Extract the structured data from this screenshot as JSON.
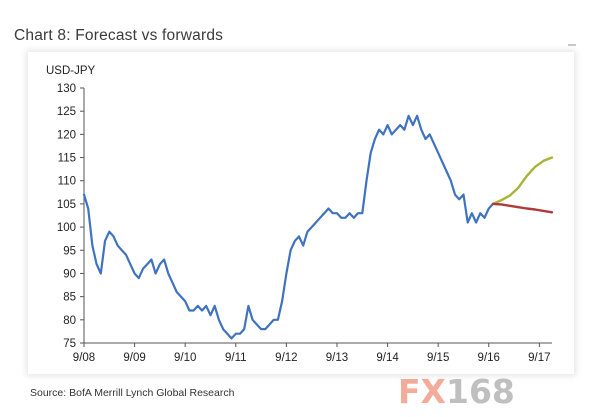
{
  "header": {
    "title": "Chart 8: Forecast vs forwards"
  },
  "footer": {
    "source": "Source: BofA Merrill Lynch Global Research"
  },
  "watermark": {
    "prefix": "FX",
    "suffix": "168"
  },
  "chart_data": {
    "type": "line",
    "title": "Chart 8: Forecast vs forwards",
    "ylabel": "USD-JPY",
    "xlabel": "",
    "ylim": [
      75,
      130
    ],
    "yticks": [
      75,
      80,
      85,
      90,
      95,
      100,
      105,
      110,
      115,
      120,
      125,
      130
    ],
    "xlim": [
      2008.667,
      2017.917
    ],
    "xticks": [
      {
        "label": "9/08",
        "t": 2008.667
      },
      {
        "label": "9/09",
        "t": 2009.667
      },
      {
        "label": "9/10",
        "t": 2010.667
      },
      {
        "label": "9/11",
        "t": 2011.667
      },
      {
        "label": "9/12",
        "t": 2012.667
      },
      {
        "label": "9/13",
        "t": 2013.667
      },
      {
        "label": "9/14",
        "t": 2014.667
      },
      {
        "label": "9/15",
        "t": 2015.667
      },
      {
        "label": "9/16",
        "t": 2016.667
      },
      {
        "label": "9/17",
        "t": 2017.667
      }
    ],
    "grid": false,
    "legend": "none",
    "series": [
      {
        "color": "#3f72c0",
        "x": [
          2008.667,
          2008.75,
          2008.833,
          2008.917,
          2009.0,
          2009.083,
          2009.167,
          2009.25,
          2009.333,
          2009.417,
          2009.5,
          2009.583,
          2009.667,
          2009.75,
          2009.833,
          2009.917,
          2010.0,
          2010.083,
          2010.167,
          2010.25,
          2010.333,
          2010.417,
          2010.5,
          2010.583,
          2010.667,
          2010.75,
          2010.833,
          2010.917,
          2011.0,
          2011.083,
          2011.167,
          2011.25,
          2011.333,
          2011.417,
          2011.5,
          2011.583,
          2011.667,
          2011.75,
          2011.833,
          2011.917,
          2012.0,
          2012.083,
          2012.167,
          2012.25,
          2012.333,
          2012.417,
          2012.5,
          2012.583,
          2012.667,
          2012.75,
          2012.833,
          2012.917,
          2013.0,
          2013.083,
          2013.167,
          2013.25,
          2013.333,
          2013.417,
          2013.5,
          2013.583,
          2013.667,
          2013.75,
          2013.833,
          2013.917,
          2014.0,
          2014.083,
          2014.167,
          2014.25,
          2014.333,
          2014.417,
          2014.5,
          2014.583,
          2014.667,
          2014.75,
          2014.833,
          2014.917,
          2015.0,
          2015.083,
          2015.167,
          2015.25,
          2015.333,
          2015.417,
          2015.5,
          2015.583,
          2015.667,
          2015.75,
          2015.833,
          2015.917,
          2016.0,
          2016.083,
          2016.167,
          2016.25,
          2016.333,
          2016.417,
          2016.5,
          2016.583,
          2016.667,
          2016.75
        ],
        "values": [
          107,
          104,
          96,
          92,
          90,
          97,
          99,
          98,
          96,
          95,
          94,
          92,
          90,
          89,
          91,
          92,
          93,
          90,
          92,
          93,
          90,
          88,
          86,
          85,
          84,
          82,
          82,
          83,
          82,
          83,
          81,
          83,
          80,
          78,
          77,
          76,
          77,
          77,
          78,
          83,
          80,
          79,
          78,
          78,
          79,
          80,
          80,
          84,
          90,
          95,
          97,
          98,
          96,
          99,
          100,
          101,
          102,
          103,
          104,
          103,
          103,
          102,
          102,
          103,
          102,
          103,
          103,
          110,
          116,
          119,
          121,
          120,
          122,
          120,
          121,
          122,
          121,
          124,
          122,
          124,
          121,
          119,
          120,
          118,
          116,
          114,
          112,
          110,
          107,
          106,
          107,
          101,
          103,
          101,
          103,
          102,
          104,
          105
        ]
      },
      {
        "color": "#a8b436",
        "x": [
          2016.75,
          2016.917,
          2017.083,
          2017.25,
          2017.417,
          2017.583,
          2017.75,
          2017.917
        ],
        "values": [
          105,
          105.8,
          106.8,
          108.5,
          111,
          113,
          114.3,
          115
        ]
      },
      {
        "color": "#b03a38",
        "x": [
          2016.75,
          2016.917,
          2017.083,
          2017.25,
          2017.417,
          2017.583,
          2017.75,
          2017.917
        ],
        "values": [
          105,
          104.9,
          104.6,
          104.3,
          104.0,
          103.8,
          103.5,
          103.2
        ]
      }
    ]
  }
}
